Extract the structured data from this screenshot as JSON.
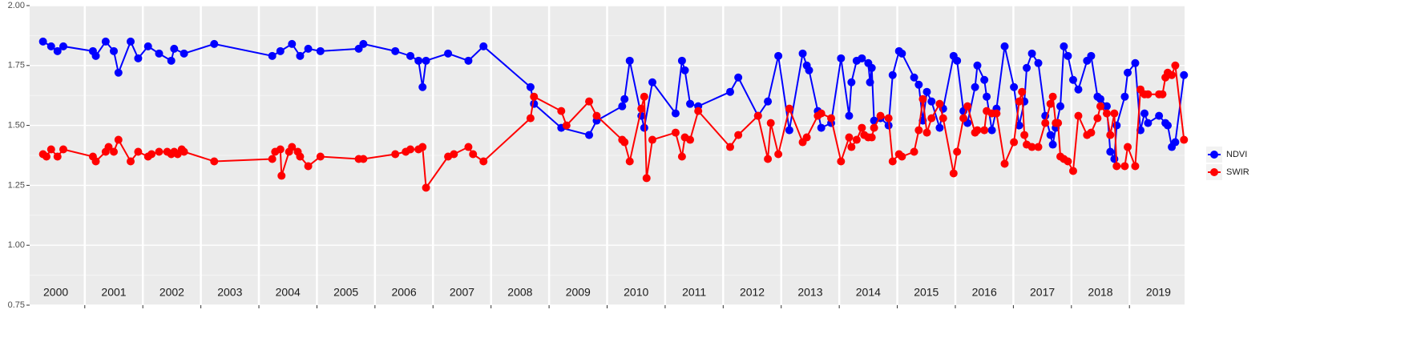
{
  "chart_data": {
    "type": "line",
    "xlim": [
      2000.05,
      2019.95
    ],
    "ylim": [
      0.75,
      2.0
    ],
    "yticks": [
      0.75,
      {
        "value": 1.0,
        "label": "1.00"
      },
      1.25,
      {
        "value": 1.5,
        "label": "1.50"
      },
      1.75,
      {
        "value": 2.0,
        "label": "2.00"
      }
    ],
    "xticks": [
      {
        "value": 2000.5,
        "label": "2000"
      },
      {
        "value": 2001.5,
        "label": "2001"
      },
      {
        "value": 2002.5,
        "label": "2002"
      },
      {
        "value": 2003.5,
        "label": "2003"
      },
      {
        "value": 2004.5,
        "label": "2004"
      },
      {
        "value": 2005.5,
        "label": "2005"
      },
      {
        "value": 2006.5,
        "label": "2006"
      },
      {
        "value": 2007.5,
        "label": "2007"
      },
      {
        "value": 2008.5,
        "label": "2008"
      },
      {
        "value": 2009.5,
        "label": "2009"
      },
      {
        "value": 2010.5,
        "label": "2010"
      },
      {
        "value": 2011.5,
        "label": "2011"
      },
      {
        "value": 2012.5,
        "label": "2012"
      },
      {
        "value": 2013.5,
        "label": "2013"
      },
      {
        "value": 2014.5,
        "label": "2014"
      },
      {
        "value": 2015.5,
        "label": "2015"
      },
      {
        "value": 2016.5,
        "label": "2016"
      },
      {
        "value": 2017.5,
        "label": "2017"
      },
      {
        "value": 2018.5,
        "label": "2018"
      },
      {
        "value": 2019.5,
        "label": "2019"
      }
    ],
    "year_boundaries": [
      2001,
      2002,
      2003,
      2004,
      2005,
      2006,
      2007,
      2008,
      2009,
      2010,
      2011,
      2012,
      2013,
      2014,
      2015,
      2016,
      2017,
      2018,
      2019
    ],
    "grid": true,
    "legend_position": "right",
    "series": [
      {
        "name": "NDVI",
        "color": "#0000ff",
        "x": [
          2000.28,
          2000.42,
          2000.53,
          2000.63,
          2001.14,
          2001.19,
          2001.36,
          2001.5,
          2001.58,
          2001.79,
          2001.92,
          2002.09,
          2002.28,
          2002.49,
          2002.54,
          2002.71,
          2003.23,
          2004.23,
          2004.37,
          2004.57,
          2004.71,
          2004.85,
          2005.06,
          2005.72,
          2005.8,
          2006.35,
          2006.61,
          2006.75,
          2006.82,
          2006.88,
          2007.26,
          2007.61,
          2007.87,
          2008.68,
          2008.74,
          2009.21,
          2009.69,
          2009.82,
          2010.26,
          2010.3,
          2010.39,
          2010.59,
          2010.64,
          2010.78,
          2011.18,
          2011.29,
          2011.34,
          2011.43,
          2011.57,
          2012.12,
          2012.26,
          2012.6,
          2012.77,
          2012.95,
          2013.14,
          2013.37,
          2013.44,
          2013.48,
          2013.63,
          2013.69,
          2013.86,
          2014.03,
          2014.17,
          2014.21,
          2014.3,
          2014.39,
          2014.5,
          2014.53,
          2014.56,
          2014.6,
          2014.71,
          2014.85,
          2014.92,
          2015.03,
          2015.08,
          2015.29,
          2015.37,
          2015.44,
          2015.51,
          2015.59,
          2015.73,
          2015.79,
          2015.97,
          2016.03,
          2016.14,
          2016.21,
          2016.34,
          2016.38,
          2016.5,
          2016.54,
          2016.63,
          2016.71,
          2016.85,
          2017.01,
          2017.1,
          2017.19,
          2017.23,
          2017.32,
          2017.43,
          2017.55,
          2017.64,
          2017.68,
          2017.73,
          2017.81,
          2017.87,
          2017.94,
          2018.03,
          2018.12,
          2018.27,
          2018.34,
          2018.45,
          2018.5,
          2018.61,
          2018.67,
          2018.74,
          2018.78,
          2018.92,
          2018.97,
          2019.1,
          2019.19,
          2019.26,
          2019.32,
          2019.51,
          2019.62,
          2019.66,
          2019.73,
          2019.79,
          2019.94
        ],
        "values": [
          1.85,
          1.83,
          1.81,
          1.83,
          1.81,
          1.79,
          1.85,
          1.81,
          1.72,
          1.85,
          1.78,
          1.83,
          1.8,
          1.77,
          1.82,
          1.8,
          1.84,
          1.79,
          1.81,
          1.84,
          1.79,
          1.82,
          1.81,
          1.82,
          1.84,
          1.81,
          1.79,
          1.77,
          1.66,
          1.77,
          1.8,
          1.77,
          1.83,
          1.66,
          1.59,
          1.49,
          1.46,
          1.52,
          1.58,
          1.61,
          1.77,
          1.54,
          1.49,
          1.68,
          1.55,
          1.77,
          1.73,
          1.59,
          1.58,
          1.64,
          1.7,
          1.54,
          1.6,
          1.79,
          1.48,
          1.8,
          1.75,
          1.73,
          1.56,
          1.49,
          1.51,
          1.78,
          1.54,
          1.68,
          1.77,
          1.78,
          1.76,
          1.68,
          1.74,
          1.52,
          1.53,
          1.5,
          1.71,
          1.81,
          1.8,
          1.7,
          1.67,
          1.52,
          1.64,
          1.6,
          1.49,
          1.57,
          1.79,
          1.77,
          1.56,
          1.51,
          1.66,
          1.75,
          1.69,
          1.62,
          1.48,
          1.57,
          1.83,
          1.66,
          1.5,
          1.6,
          1.74,
          1.8,
          1.76,
          1.54,
          1.46,
          1.42,
          1.49,
          1.58,
          1.83,
          1.79,
          1.69,
          1.65,
          1.77,
          1.79,
          1.62,
          1.61,
          1.58,
          1.39,
          1.36,
          1.5,
          1.62,
          1.72,
          1.76,
          1.48,
          1.55,
          1.51,
          1.54,
          1.51,
          1.5,
          1.41,
          1.43,
          1.71
        ]
      },
      {
        "name": "SWIR",
        "color": "#ff0000",
        "x": [
          2000.28,
          2000.34,
          2000.42,
          2000.53,
          2000.63,
          2001.14,
          2001.19,
          2001.36,
          2001.41,
          2001.5,
          2001.58,
          2001.79,
          2001.92,
          2002.09,
          2002.15,
          2002.28,
          2002.42,
          2002.49,
          2002.54,
          2002.6,
          2002.67,
          2002.71,
          2003.23,
          2004.23,
          2004.28,
          2004.37,
          2004.39,
          2004.52,
          2004.57,
          2004.67,
          2004.71,
          2004.85,
          2005.06,
          2005.72,
          2005.8,
          2006.35,
          2006.53,
          2006.61,
          2006.75,
          2006.82,
          2006.88,
          2007.26,
          2007.36,
          2007.61,
          2007.69,
          2007.87,
          2008.68,
          2008.74,
          2009.21,
          2009.3,
          2009.69,
          2009.82,
          2010.26,
          2010.3,
          2010.39,
          2010.59,
          2010.64,
          2010.68,
          2010.78,
          2011.18,
          2011.29,
          2011.34,
          2011.43,
          2011.57,
          2012.12,
          2012.26,
          2012.6,
          2012.77,
          2012.82,
          2012.95,
          2013.14,
          2013.37,
          2013.44,
          2013.63,
          2013.69,
          2013.86,
          2014.03,
          2014.17,
          2014.21,
          2014.3,
          2014.39,
          2014.43,
          2014.5,
          2014.56,
          2014.6,
          2014.71,
          2014.85,
          2014.92,
          2015.03,
          2015.08,
          2015.29,
          2015.37,
          2015.44,
          2015.51,
          2015.59,
          2015.73,
          2015.79,
          2015.97,
          2016.03,
          2016.14,
          2016.21,
          2016.34,
          2016.38,
          2016.5,
          2016.54,
          2016.63,
          2016.71,
          2016.85,
          2017.01,
          2017.1,
          2017.15,
          2017.19,
          2017.23,
          2017.32,
          2017.43,
          2017.55,
          2017.64,
          2017.68,
          2017.73,
          2017.77,
          2017.81,
          2017.87,
          2017.94,
          2018.03,
          2018.12,
          2018.27,
          2018.34,
          2018.45,
          2018.5,
          2018.61,
          2018.67,
          2018.74,
          2018.78,
          2018.92,
          2018.97,
          2019.1,
          2019.19,
          2019.26,
          2019.32,
          2019.51,
          2019.57,
          2019.62,
          2019.66,
          2019.73,
          2019.79,
          2019.94
        ],
        "values": [
          1.38,
          1.37,
          1.4,
          1.37,
          1.4,
          1.37,
          1.35,
          1.39,
          1.41,
          1.39,
          1.44,
          1.35,
          1.39,
          1.37,
          1.38,
          1.39,
          1.39,
          1.38,
          1.39,
          1.38,
          1.4,
          1.39,
          1.35,
          1.36,
          1.39,
          1.4,
          1.29,
          1.39,
          1.41,
          1.39,
          1.37,
          1.33,
          1.37,
          1.36,
          1.36,
          1.38,
          1.39,
          1.4,
          1.4,
          1.41,
          1.24,
          1.37,
          1.38,
          1.41,
          1.38,
          1.35,
          1.53,
          1.62,
          1.56,
          1.5,
          1.6,
          1.54,
          1.44,
          1.43,
          1.35,
          1.57,
          1.62,
          1.28,
          1.44,
          1.47,
          1.37,
          1.45,
          1.44,
          1.56,
          1.41,
          1.46,
          1.54,
          1.36,
          1.51,
          1.38,
          1.57,
          1.43,
          1.45,
          1.54,
          1.55,
          1.53,
          1.35,
          1.45,
          1.41,
          1.44,
          1.49,
          1.46,
          1.45,
          1.45,
          1.49,
          1.54,
          1.53,
          1.35,
          1.38,
          1.37,
          1.39,
          1.48,
          1.61,
          1.47,
          1.53,
          1.59,
          1.53,
          1.3,
          1.39,
          1.53,
          1.58,
          1.47,
          1.48,
          1.48,
          1.56,
          1.55,
          1.55,
          1.34,
          1.43,
          1.6,
          1.64,
          1.46,
          1.42,
          1.41,
          1.41,
          1.51,
          1.59,
          1.62,
          1.51,
          1.51,
          1.37,
          1.36,
          1.35,
          1.31,
          1.54,
          1.46,
          1.47,
          1.53,
          1.58,
          1.55,
          1.46,
          1.55,
          1.33,
          1.33,
          1.41,
          1.33,
          1.65,
          1.63,
          1.63,
          1.63,
          1.63,
          1.7,
          1.72,
          1.71,
          1.75,
          1.44
        ]
      }
    ]
  }
}
